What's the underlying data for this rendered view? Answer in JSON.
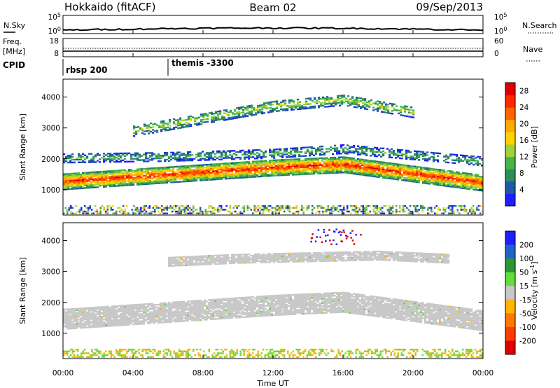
{
  "header": {
    "station": "Hokkaido (fitACF)",
    "beam": "Beam 02",
    "date": "09/Sep/2013"
  },
  "noise_panel": {
    "left_label": "N.Sky",
    "right_label": "N.Search",
    "left_ticks": [
      "10^5",
      "10^0"
    ],
    "right_ticks": [
      "10^5",
      "10^0"
    ]
  },
  "freq_panel": {
    "left_label_1": "Freq.",
    "left_label_2": "[MHz]",
    "left_ticks": [
      "18",
      "8"
    ],
    "right_ticks": [
      "60",
      "0"
    ],
    "right_label": "Nave"
  },
  "cpid": {
    "label": "CPID",
    "segments": [
      {
        "name": "rbsp 200",
        "start_hour": 0
      },
      {
        "name": "themis -3300",
        "start_hour": 6
      }
    ]
  },
  "x_axis": {
    "title": "Time UT",
    "ticks": [
      "00:00",
      "04:00",
      "08:00",
      "12:00",
      "16:00",
      "20:00",
      "00:00"
    ]
  },
  "chart_data": [
    {
      "type": "heatmap",
      "title": "",
      "xlabel": "Time UT",
      "ylabel": "Slant Range [km]",
      "xlim_hours": [
        0,
        24
      ],
      "ylim": [
        180,
        4580
      ],
      "y_ticks": [
        1000,
        2000,
        3000,
        4000
      ],
      "colorbar": {
        "label": "Power [dB]",
        "ticks": [
          4,
          8,
          12,
          16,
          20,
          24,
          28
        ],
        "range": [
          0,
          30
        ],
        "colors": [
          "#1e1eff",
          "#1e5aa8",
          "#2d8c5a",
          "#46b446",
          "#a0d23c",
          "#ffd200",
          "#ffaa00",
          "#ff6400",
          "#ff2800",
          "#e10000"
        ]
      },
      "echo_bands": [
        {
          "label": "main band",
          "x": [
            0,
            4,
            8,
            12,
            16,
            20,
            24
          ],
          "range_km": [
            1250,
            1400,
            1550,
            1700,
            1800,
            1500,
            1200
          ],
          "power_dB": 26
        },
        {
          "label": "upper band",
          "x": [
            0,
            6,
            12,
            16,
            20,
            24
          ],
          "range_km": [
            2000,
            2050,
            2150,
            2300,
            2100,
            1900
          ],
          "power_dB": 10
        },
        {
          "label": "far range",
          "x": [
            4,
            8,
            12,
            16,
            20
          ],
          "range_km": [
            2900,
            3300,
            3700,
            3900,
            3500
          ],
          "power_dB": 14
        }
      ]
    },
    {
      "type": "heatmap",
      "title": "",
      "xlabel": "Time UT",
      "ylabel": "Slant Range [km]",
      "xlim_hours": [
        0,
        24
      ],
      "ylim": [
        180,
        4580
      ],
      "y_ticks": [
        1000,
        2000,
        3000,
        4000
      ],
      "colorbar": {
        "label": "Velocity [m s^-1]",
        "ticks": [
          200,
          100,
          50,
          15,
          -15,
          -50,
          -100,
          -200
        ],
        "colors": [
          "#1e1eff",
          "#1e64c8",
          "#2d9632",
          "#64dc3c",
          "#c8c8c8",
          "#ffb400",
          "#ff7800",
          "#ff3c00",
          "#e10000"
        ]
      },
      "echo_bands": [
        {
          "label": "ground scatter",
          "x": [
            0,
            4,
            8,
            12,
            16,
            20,
            24
          ],
          "range_km": [
            1450,
            1600,
            1750,
            1900,
            2000,
            1700,
            1400
          ],
          "velocity_ms": 0
        },
        {
          "label": "far range",
          "x": [
            6,
            10,
            14,
            18,
            22
          ],
          "range_km": [
            3300,
            3400,
            3450,
            3500,
            3400
          ],
          "velocity_ms": 0
        }
      ]
    }
  ]
}
